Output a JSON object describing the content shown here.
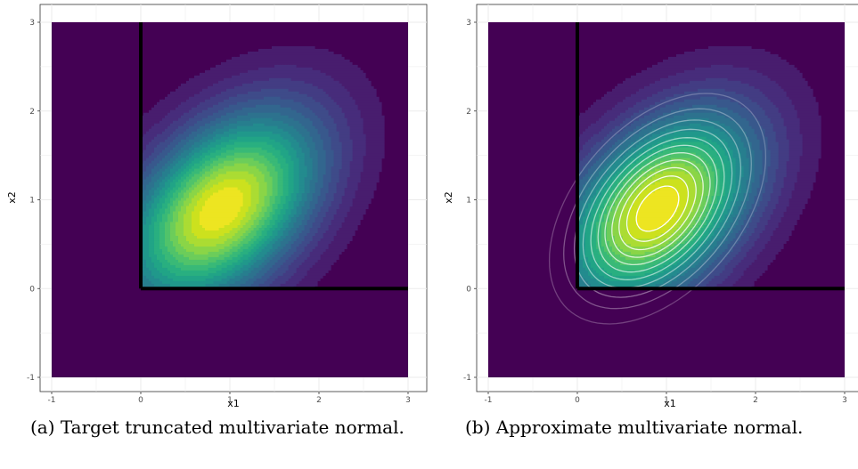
{
  "chart_data": [
    {
      "type": "heatmap",
      "caption": "(a) Target truncated multivariate normal.",
      "xlabel": "x1",
      "ylabel": "x2",
      "xlim": [
        -1,
        3
      ],
      "ylim": [
        -1,
        3
      ],
      "x_ticks": [
        "-1",
        "0",
        "1",
        "2",
        "3"
      ],
      "y_ticks": [
        "-1",
        "0",
        "1",
        "2",
        "3"
      ],
      "truncation_bounds": {
        "x1_min": 0,
        "x2_min": 0
      },
      "fill": {
        "distribution": "truncated-normal",
        "mean": [
          0.9,
          0.9
        ],
        "sd": [
          0.75,
          0.75
        ],
        "correlation": 0.45,
        "bands": 20
      },
      "contours": null,
      "colormap": "viridis",
      "grid": true
    },
    {
      "type": "heatmap",
      "caption": "(b) Approximate multivariate normal.",
      "xlabel": "x1",
      "ylabel": "x2",
      "xlim": [
        -1,
        3
      ],
      "ylim": [
        -1,
        3
      ],
      "x_ticks": [
        "-1",
        "0",
        "1",
        "2",
        "3"
      ],
      "y_ticks": [
        "-1",
        "0",
        "1",
        "2",
        "3"
      ],
      "truncation_bounds": {
        "x1_min": 0,
        "x2_min": 0
      },
      "fill": {
        "distribution": "truncated-normal",
        "mean": [
          0.9,
          0.9
        ],
        "sd": [
          0.75,
          0.75
        ],
        "correlation": 0.45,
        "bands": 20
      },
      "contours": {
        "color": "#ffffff",
        "mean": [
          0.9,
          0.9
        ],
        "sd": [
          0.58,
          0.62
        ],
        "correlation": 0.45,
        "levels": 11
      },
      "colormap": "viridis",
      "grid": true
    }
  ]
}
